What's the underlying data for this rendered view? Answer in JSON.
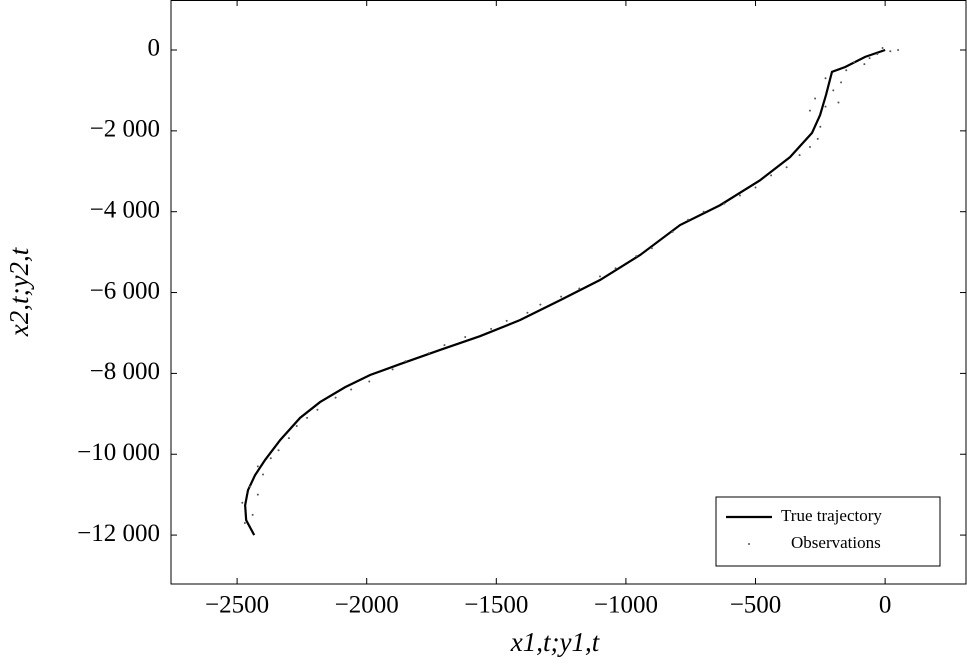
{
  "chart_data": {
    "type": "line",
    "xlabel": "x1,t;y1,t",
    "ylabel": "x2,t;y2,t",
    "xlim": [
      -2755,
      312
    ],
    "ylim": [
      -13210,
      1237
    ],
    "xticks": [
      {
        "value": -2500,
        "label": "−2500"
      },
      {
        "value": -2000,
        "label": "−2000"
      },
      {
        "value": -1500,
        "label": "−1500"
      },
      {
        "value": -1000,
        "label": "−1000"
      },
      {
        "value": -500,
        "label": "−500"
      },
      0
    ],
    "yticks": [
      0,
      {
        "value": -2000,
        "label": "−2 000"
      },
      {
        "value": -4000,
        "label": "−4 000"
      },
      {
        "value": -6000,
        "label": "−6 000"
      },
      {
        "value": -8000,
        "label": "−8 000"
      },
      {
        "value": -10000,
        "label": "−10 000"
      },
      {
        "value": -12000,
        "label": "−12 000"
      }
    ],
    "legend": "lower right",
    "series": [
      {
        "name": "True trajectory",
        "type": "line",
        "color": "#000000",
        "x": [
          -2434,
          -2465,
          -2469,
          -2458,
          -2431,
          -2392,
          -2334,
          -2257,
          -2180,
          -2083,
          -1987,
          -1871,
          -1717,
          -1563,
          -1408,
          -1254,
          -1100,
          -945,
          -791,
          -637,
          -482,
          -367,
          -282,
          -251,
          -228,
          -205,
          -154,
          -77,
          0
        ],
        "values": [
          -12000,
          -11630,
          -11260,
          -10890,
          -10520,
          -10140,
          -9650,
          -9100,
          -8710,
          -8340,
          -8040,
          -7770,
          -7420,
          -7080,
          -6680,
          -6190,
          -5690,
          -5070,
          -4330,
          -3840,
          -3220,
          -2650,
          -2050,
          -1610,
          -1110,
          -540,
          -420,
          -170,
          0
        ]
      },
      {
        "name": "Observations",
        "type": "scatter",
        "color": "#555555",
        "x": [
          -2470,
          -2440,
          -2480,
          -2420,
          -2450,
          -2400,
          -2420,
          -2370,
          -2340,
          -2300,
          -2270,
          -2230,
          -2190,
          -2120,
          -2060,
          -1990,
          -1900,
          -1850,
          -1760,
          -1700,
          -1620,
          -1520,
          -1460,
          -1380,
          -1330,
          -1250,
          -1180,
          -1100,
          -1040,
          -960,
          -900,
          -820,
          -760,
          -700,
          -620,
          -560,
          -500,
          -440,
          -380,
          -330,
          -290,
          -260,
          -250,
          -290,
          -230,
          -270,
          -200,
          -170,
          -230,
          -150,
          -120,
          -60,
          -30,
          20,
          50,
          -10,
          -80,
          -180
        ],
        "values": [
          -11700,
          -11500,
          -11200,
          -11000,
          -10800,
          -10500,
          -10300,
          -10100,
          -9900,
          -9600,
          -9300,
          -9100,
          -8900,
          -8600,
          -8400,
          -8200,
          -7900,
          -7700,
          -7500,
          -7300,
          -7100,
          -6900,
          -6700,
          -6500,
          -6300,
          -6100,
          -5900,
          -5600,
          -5400,
          -5100,
          -4900,
          -4500,
          -4200,
          -4000,
          -3800,
          -3600,
          -3400,
          -3100,
          -2900,
          -2600,
          -2400,
          -2200,
          -1900,
          -1500,
          -1400,
          -1200,
          -1000,
          -800,
          -700,
          -500,
          -300,
          -200,
          -100,
          -30,
          0,
          50,
          -350,
          -1300
        ]
      }
    ]
  }
}
